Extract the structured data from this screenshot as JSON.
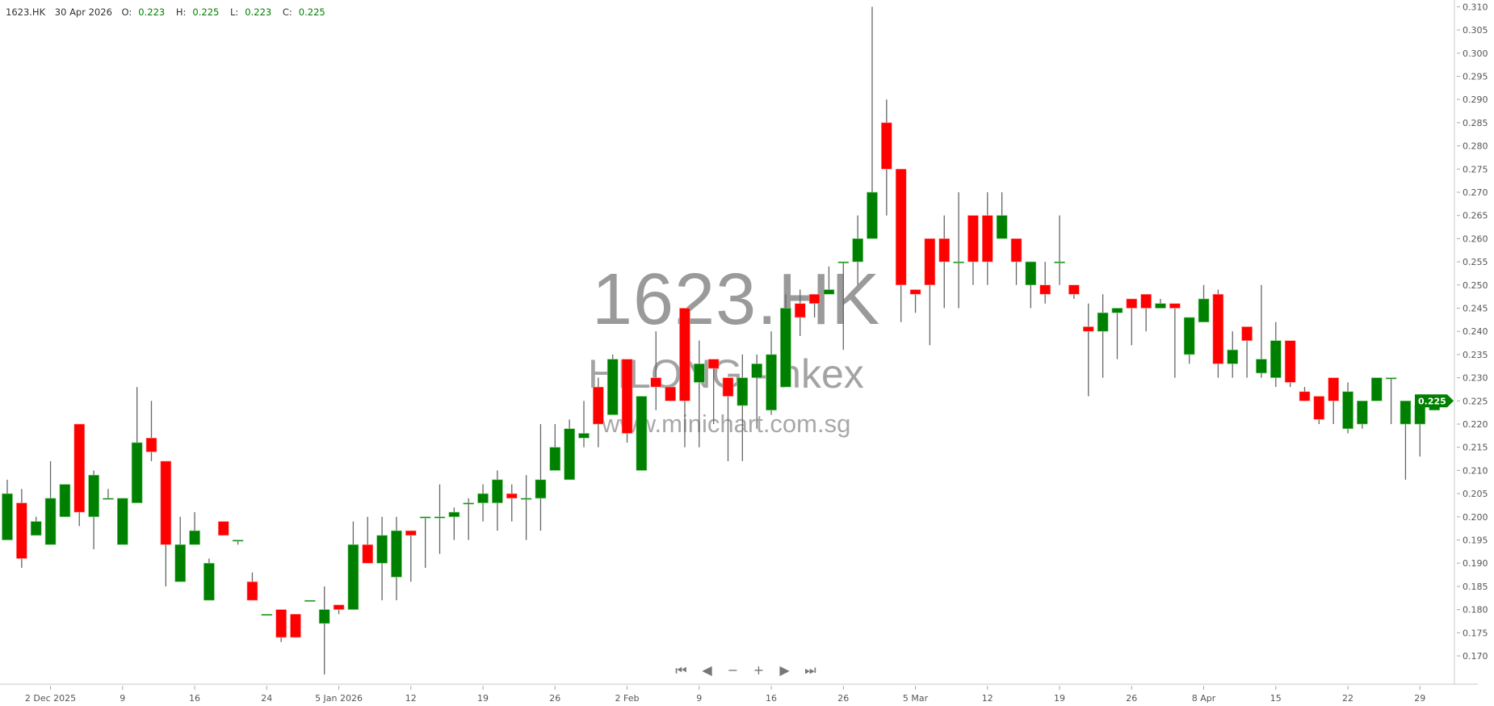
{
  "header": {
    "symbol": "1623.HK",
    "date": "30 Apr 2026",
    "o_label": "O:",
    "o": "0.223",
    "h_label": "H:",
    "h": "0.225",
    "l_label": "L:",
    "l": "0.223",
    "c_label": "C:",
    "c": "0.225"
  },
  "watermark": {
    "symbol": "1623.HK",
    "name": "HILONG - hkex",
    "site": "www.minichart.com.sg"
  },
  "navigation": [
    {
      "name": "first-icon",
      "glyph": "⏮"
    },
    {
      "name": "previous-icon",
      "glyph": "◀"
    },
    {
      "name": "zoom-out-icon",
      "glyph": "−"
    },
    {
      "name": "zoom-in-icon",
      "glyph": "+"
    },
    {
      "name": "next-icon",
      "glyph": "▶"
    },
    {
      "name": "last-icon",
      "glyph": "⏭"
    }
  ],
  "colors": {
    "up": "#008000",
    "down": "#ff0000",
    "wick": "#666666",
    "axis": "#c8c8c8",
    "text": "#555555",
    "watermark": "#9a9a9a"
  },
  "chart_data": {
    "type": "candlestick",
    "symbol": "1623.HK",
    "ohlc_fields": [
      "open",
      "high",
      "low",
      "close"
    ],
    "ylim": [
      0.165,
      0.311
    ],
    "y_ticks": [
      0.17,
      0.175,
      0.18,
      0.185,
      0.19,
      0.195,
      0.2,
      0.205,
      0.21,
      0.215,
      0.22,
      0.225,
      0.23,
      0.235,
      0.24,
      0.245,
      0.25,
      0.255,
      0.26,
      0.265,
      0.27,
      0.275,
      0.28,
      0.285,
      0.29,
      0.295,
      0.3,
      0.305,
      0.31
    ],
    "last_price_label": "0.225",
    "grid": false,
    "x_ticks": [
      {
        "candle": 3,
        "label": "2 Dec 2025"
      },
      {
        "candle": 8,
        "label": "9"
      },
      {
        "candle": 13,
        "label": "16"
      },
      {
        "candle": 18,
        "label": "24"
      },
      {
        "candle": 23,
        "label": "5 Jan 2026"
      },
      {
        "candle": 28,
        "label": "12"
      },
      {
        "candle": 33,
        "label": "19"
      },
      {
        "candle": 38,
        "label": "26"
      },
      {
        "candle": 43,
        "label": "2 Feb"
      },
      {
        "candle": 48,
        "label": "9"
      },
      {
        "candle": 53,
        "label": "16"
      },
      {
        "candle": 58,
        "label": "26"
      },
      {
        "candle": 63,
        "label": "5 Mar"
      },
      {
        "candle": 68,
        "label": "12"
      },
      {
        "candle": 73,
        "label": "19"
      },
      {
        "candle": 78,
        "label": "26"
      },
      {
        "candle": 83,
        "label": "8 Apr"
      },
      {
        "candle": 88,
        "label": "15"
      },
      {
        "candle": 93,
        "label": "22"
      },
      {
        "candle": 98,
        "label": "29"
      }
    ],
    "candles": [
      [
        0.195,
        0.208,
        0.195,
        0.205
      ],
      [
        0.203,
        0.206,
        0.189,
        0.191
      ],
      [
        0.196,
        0.2,
        0.196,
        0.199
      ],
      [
        0.194,
        0.212,
        0.194,
        0.204
      ],
      [
        0.2,
        0.207,
        0.2,
        0.207
      ],
      [
        0.22,
        0.22,
        0.198,
        0.201
      ],
      [
        0.2,
        0.21,
        0.193,
        0.209
      ],
      [
        0.204,
        0.206,
        0.204,
        0.204
      ],
      [
        0.194,
        0.204,
        0.194,
        0.204
      ],
      [
        0.203,
        0.228,
        0.203,
        0.216
      ],
      [
        0.217,
        0.225,
        0.212,
        0.214
      ],
      [
        0.212,
        0.212,
        0.185,
        0.194
      ],
      [
        0.186,
        0.2,
        0.186,
        0.194
      ],
      [
        0.194,
        0.201,
        0.194,
        0.197
      ],
      [
        0.182,
        0.191,
        0.182,
        0.19
      ],
      [
        0.199,
        0.199,
        0.196,
        0.196
      ],
      [
        0.195,
        0.195,
        0.194,
        0.195
      ],
      [
        0.186,
        0.188,
        0.182,
        0.182
      ],
      [
        0.179,
        0.179,
        0.179,
        0.179
      ],
      [
        0.18,
        0.18,
        0.173,
        0.174
      ],
      [
        0.179,
        0.179,
        0.174,
        0.174
      ],
      [
        0.182,
        0.182,
        0.182,
        0.182
      ],
      [
        0.177,
        0.185,
        0.166,
        0.18
      ],
      [
        0.181,
        0.181,
        0.179,
        0.18
      ],
      [
        0.18,
        0.199,
        0.18,
        0.194
      ],
      [
        0.194,
        0.2,
        0.19,
        0.19
      ],
      [
        0.19,
        0.2,
        0.182,
        0.196
      ],
      [
        0.187,
        0.2,
        0.182,
        0.197
      ],
      [
        0.197,
        0.197,
        0.186,
        0.196
      ],
      [
        0.2,
        0.2,
        0.189,
        0.2
      ],
      [
        0.2,
        0.207,
        0.192,
        0.2
      ],
      [
        0.2,
        0.202,
        0.195,
        0.201
      ],
      [
        0.203,
        0.204,
        0.195,
        0.203
      ],
      [
        0.203,
        0.207,
        0.199,
        0.205
      ],
      [
        0.203,
        0.21,
        0.197,
        0.208
      ],
      [
        0.205,
        0.207,
        0.199,
        0.204
      ],
      [
        0.204,
        0.209,
        0.195,
        0.204
      ],
      [
        0.204,
        0.22,
        0.197,
        0.208
      ],
      [
        0.21,
        0.22,
        0.21,
        0.215
      ],
      [
        0.208,
        0.221,
        0.208,
        0.219
      ],
      [
        0.217,
        0.225,
        0.215,
        0.218
      ],
      [
        0.228,
        0.23,
        0.215,
        0.22
      ],
      [
        0.222,
        0.235,
        0.222,
        0.234
      ],
      [
        0.234,
        0.234,
        0.216,
        0.218
      ],
      [
        0.21,
        0.226,
        0.21,
        0.226
      ],
      [
        0.23,
        0.24,
        0.223,
        0.228
      ],
      [
        0.228,
        0.228,
        0.225,
        0.225
      ],
      [
        0.245,
        0.245,
        0.215,
        0.225
      ],
      [
        0.229,
        0.238,
        0.215,
        0.233
      ],
      [
        0.234,
        0.234,
        0.22,
        0.232
      ],
      [
        0.23,
        0.23,
        0.212,
        0.226
      ],
      [
        0.224,
        0.235,
        0.212,
        0.23
      ],
      [
        0.23,
        0.235,
        0.219,
        0.233
      ],
      [
        0.223,
        0.24,
        0.222,
        0.235
      ],
      [
        0.228,
        0.248,
        0.228,
        0.245
      ],
      [
        0.246,
        0.249,
        0.239,
        0.243
      ],
      [
        0.248,
        0.248,
        0.243,
        0.246
      ],
      [
        0.248,
        0.254,
        0.248,
        0.249
      ],
      [
        0.255,
        0.255,
        0.236,
        0.255
      ],
      [
        0.255,
        0.265,
        0.25,
        0.26
      ],
      [
        0.26,
        0.31,
        0.26,
        0.27
      ],
      [
        0.285,
        0.29,
        0.265,
        0.275
      ],
      [
        0.275,
        0.275,
        0.242,
        0.25
      ],
      [
        0.249,
        0.249,
        0.244,
        0.248
      ],
      [
        0.26,
        0.26,
        0.237,
        0.25
      ],
      [
        0.26,
        0.265,
        0.245,
        0.255
      ],
      [
        0.255,
        0.27,
        0.245,
        0.255
      ],
      [
        0.265,
        0.265,
        0.25,
        0.255
      ],
      [
        0.265,
        0.27,
        0.25,
        0.255
      ],
      [
        0.26,
        0.27,
        0.26,
        0.265
      ],
      [
        0.26,
        0.26,
        0.25,
        0.255
      ],
      [
        0.25,
        0.255,
        0.245,
        0.255
      ],
      [
        0.25,
        0.255,
        0.246,
        0.248
      ],
      [
        0.255,
        0.265,
        0.25,
        0.255
      ],
      [
        0.25,
        0.25,
        0.247,
        0.248
      ],
      [
        0.241,
        0.246,
        0.226,
        0.24
      ],
      [
        0.24,
        0.248,
        0.23,
        0.244
      ],
      [
        0.244,
        0.245,
        0.234,
        0.245
      ],
      [
        0.247,
        0.247,
        0.237,
        0.245
      ],
      [
        0.248,
        0.248,
        0.24,
        0.245
      ],
      [
        0.245,
        0.247,
        0.245,
        0.246
      ],
      [
        0.246,
        0.246,
        0.23,
        0.245
      ],
      [
        0.235,
        0.243,
        0.233,
        0.243
      ],
      [
        0.242,
        0.25,
        0.242,
        0.247
      ],
      [
        0.248,
        0.249,
        0.23,
        0.233
      ],
      [
        0.233,
        0.24,
        0.23,
        0.236
      ],
      [
        0.241,
        0.241,
        0.23,
        0.238
      ],
      [
        0.231,
        0.25,
        0.23,
        0.234
      ],
      [
        0.23,
        0.242,
        0.228,
        0.238
      ],
      [
        0.238,
        0.238,
        0.228,
        0.229
      ],
      [
        0.227,
        0.228,
        0.225,
        0.225
      ],
      [
        0.226,
        0.226,
        0.22,
        0.221
      ],
      [
        0.23,
        0.23,
        0.22,
        0.225
      ],
      [
        0.219,
        0.229,
        0.218,
        0.227
      ],
      [
        0.22,
        0.225,
        0.219,
        0.225
      ],
      [
        0.225,
        0.23,
        0.225,
        0.23
      ],
      [
        0.23,
        0.23,
        0.22,
        0.23
      ],
      [
        0.22,
        0.225,
        0.208,
        0.225
      ],
      [
        0.22,
        0.225,
        0.213,
        0.224
      ],
      [
        0.223,
        0.225,
        0.223,
        0.225
      ]
    ]
  }
}
